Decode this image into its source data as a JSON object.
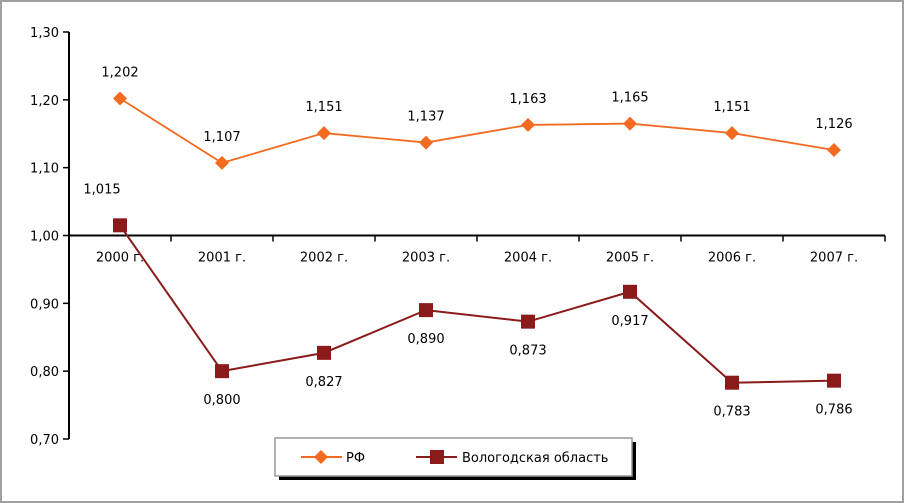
{
  "chart_data": {
    "type": "line",
    "categories": [
      "2000 г.",
      "2001 г.",
      "2002 г.",
      "2003 г.",
      "2004 г.",
      "2005 г.",
      "2006 г.",
      "2007 г."
    ],
    "series": [
      {
        "name": "РФ",
        "values": [
          1.202,
          1.107,
          1.151,
          1.137,
          1.163,
          1.165,
          1.151,
          1.126
        ],
        "labels": [
          "1,202",
          "1,107",
          "1,151",
          "1,137",
          "1,163",
          "1,165",
          "1,151",
          "1,126"
        ],
        "color": "#f26b21",
        "marker": "diamond"
      },
      {
        "name": "Вологодская область",
        "values": [
          1.015,
          0.8,
          0.827,
          0.89,
          0.873,
          0.917,
          0.783,
          0.786
        ],
        "labels": [
          "1,015",
          "0,800",
          "0,827",
          "0,890",
          "0,873",
          "0,917",
          "0,783",
          "0,786"
        ],
        "color": "#8b1a1a",
        "marker": "square"
      }
    ],
    "ylim": [
      0.7,
      1.3
    ],
    "yticks": [
      "0,70",
      "0,80",
      "0,90",
      "1,00",
      "1,10",
      "1,20",
      "1,30"
    ],
    "category_axis_crosses": 1.0,
    "grid": false,
    "legend": "bottom",
    "title": "",
    "xlabel": "",
    "ylabel": ""
  }
}
